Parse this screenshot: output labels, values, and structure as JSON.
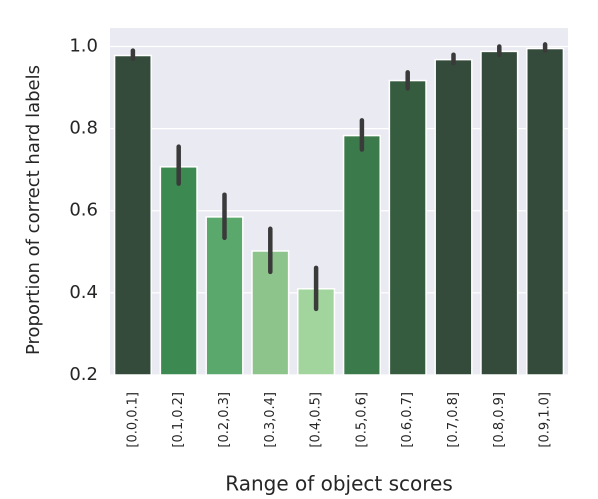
{
  "chart_data": {
    "type": "bar",
    "xlabel": "Range of object scores",
    "ylabel": "Proportion of correct hard labels",
    "categories": [
      "[0.0,0.1]",
      "[0.1,0.2]",
      "[0.2,0.3]",
      "[0.3,0.4]",
      "[0.4,0.5]",
      "[0.5,0.6]",
      "[0.6,0.7]",
      "[0.7,0.8]",
      "[0.8,0.9]",
      "[0.9,1.0]"
    ],
    "values": [
      0.978,
      0.707,
      0.585,
      0.502,
      0.41,
      0.783,
      0.917,
      0.968,
      0.988,
      0.995
    ],
    "error_low": [
      0.97,
      0.666,
      0.534,
      0.451,
      0.361,
      0.749,
      0.898,
      0.959,
      0.98,
      0.99
    ],
    "error_high": [
      0.99,
      0.756,
      0.639,
      0.556,
      0.461,
      0.82,
      0.937,
      0.98,
      1.0,
      1.005
    ],
    "colors": [
      "#344a3a",
      "#3c8a52",
      "#5ba86c",
      "#8cc48c",
      "#a2d49d",
      "#3b7b4b",
      "#365c40",
      "#344a3a",
      "#344a3a",
      "#344a3a"
    ],
    "error_color": "#3a3a3a",
    "ylim": [
      0.2,
      1.045
    ],
    "yticks": [
      {
        "value": 0.2,
        "label": "0.2"
      },
      {
        "value": 0.4,
        "label": "0.4"
      },
      {
        "value": 0.6,
        "label": "0.6"
      },
      {
        "value": 0.8,
        "label": "0.8"
      },
      {
        "value": 1.0,
        "label": "1.0"
      }
    ],
    "grid": true,
    "background": "#eaeaf2"
  }
}
